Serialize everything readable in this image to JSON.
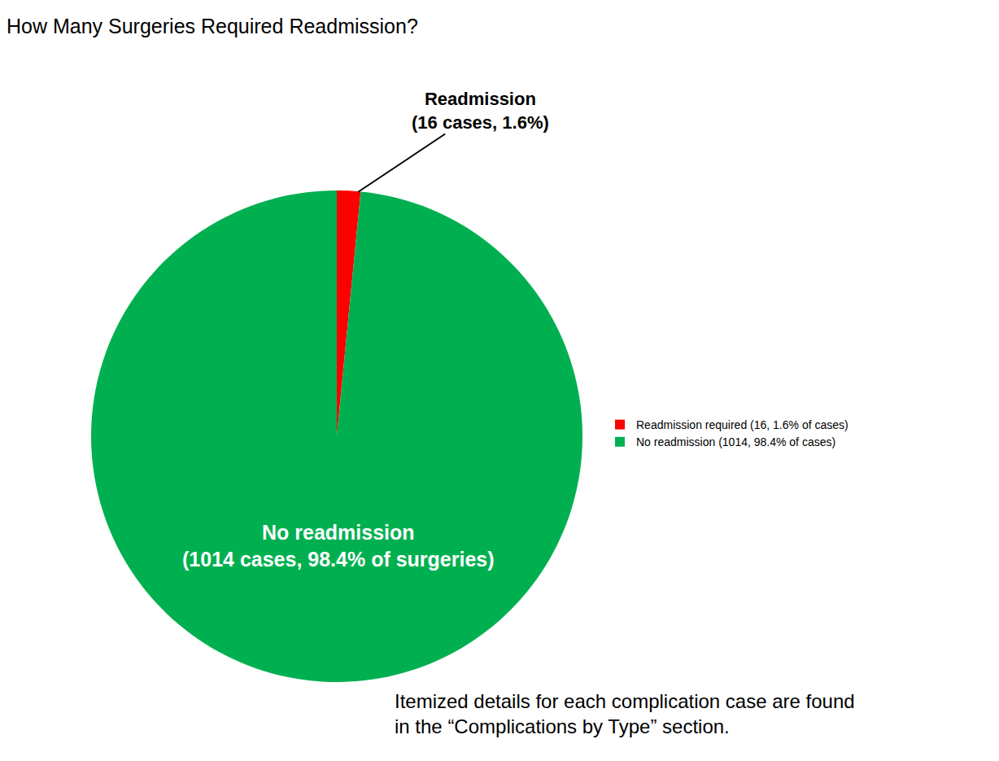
{
  "chart_data": {
    "type": "pie",
    "title": "How Many Surgeries Required Readmission?",
    "categories": [
      "Readmission required (16, 1.6% of cases)",
      "No readmission (1014, 98.4% of cases)"
    ],
    "values": [
      16,
      1014
    ],
    "colors": [
      "#ff0000",
      "#00b050"
    ],
    "data_labels": true,
    "value_labels": [
      "Readmission\n(16 cases, 1.6%)",
      "No readmission\n(1014 cases, 98.4% of surgeries)"
    ],
    "legend": "right",
    "annotations": [
      "Itemized details for each complication case are found\nin the “Complications by Type” section."
    ]
  }
}
